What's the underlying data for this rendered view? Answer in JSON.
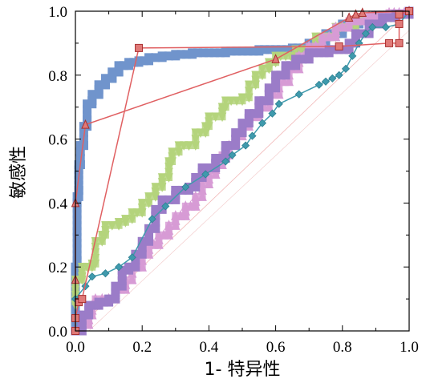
{
  "chart_data": {
    "type": "line",
    "title": "",
    "xlabel": "1- 特异性",
    "ylabel": "敏感性",
    "xlim": [
      0,
      1
    ],
    "ylim": [
      0,
      1
    ],
    "xticks": [
      "0.0",
      "0.2",
      "0.4",
      "0.6",
      "0.8",
      "1.0"
    ],
    "yticks": [
      "0.0",
      "0.2",
      "0.4",
      "0.6",
      "0.8",
      "1.0"
    ],
    "grid": false,
    "legend": "none",
    "diagonal_reference": [
      [
        0,
        0
      ],
      [
        1,
        1
      ]
    ],
    "series": [
      {
        "color": "#7094cc",
        "marker": "square",
        "style": "step",
        "points": [
          [
            0.0,
            0.0
          ],
          [
            0.0,
            0.2
          ],
          [
            0.005,
            0.22
          ],
          [
            0.005,
            0.42
          ],
          [
            0.01,
            0.44
          ],
          [
            0.01,
            0.52
          ],
          [
            0.015,
            0.52
          ],
          [
            0.015,
            0.58
          ],
          [
            0.025,
            0.58
          ],
          [
            0.025,
            0.64
          ],
          [
            0.035,
            0.66
          ],
          [
            0.035,
            0.71
          ],
          [
            0.05,
            0.72
          ],
          [
            0.05,
            0.74
          ],
          [
            0.07,
            0.74
          ],
          [
            0.07,
            0.77
          ],
          [
            0.09,
            0.77
          ],
          [
            0.09,
            0.79
          ],
          [
            0.11,
            0.79
          ],
          [
            0.11,
            0.81
          ],
          [
            0.13,
            0.81
          ],
          [
            0.13,
            0.83
          ],
          [
            0.16,
            0.84
          ],
          [
            0.19,
            0.845
          ],
          [
            0.22,
            0.855
          ],
          [
            0.26,
            0.86
          ],
          [
            0.3,
            0.865
          ],
          [
            0.35,
            0.87
          ],
          [
            0.45,
            0.875
          ],
          [
            0.55,
            0.88
          ],
          [
            0.65,
            0.885
          ],
          [
            0.7,
            0.9
          ],
          [
            0.75,
            0.93
          ],
          [
            0.8,
            0.96
          ],
          [
            0.85,
            0.975
          ],
          [
            0.9,
            0.985
          ],
          [
            0.95,
            0.99
          ],
          [
            1.0,
            1.0
          ]
        ]
      },
      {
        "color": "#b4d47c",
        "marker": "triangle-down",
        "style": "step",
        "points": [
          [
            0.0,
            0.08
          ],
          [
            0.0,
            0.16
          ],
          [
            0.02,
            0.17
          ],
          [
            0.02,
            0.2
          ],
          [
            0.05,
            0.21
          ],
          [
            0.06,
            0.28
          ],
          [
            0.08,
            0.3
          ],
          [
            0.09,
            0.33
          ],
          [
            0.13,
            0.34
          ],
          [
            0.15,
            0.35
          ],
          [
            0.17,
            0.37
          ],
          [
            0.2,
            0.4
          ],
          [
            0.22,
            0.42
          ],
          [
            0.24,
            0.45
          ],
          [
            0.26,
            0.48
          ],
          [
            0.28,
            0.53
          ],
          [
            0.29,
            0.56
          ],
          [
            0.31,
            0.58
          ],
          [
            0.34,
            0.58
          ],
          [
            0.36,
            0.62
          ],
          [
            0.39,
            0.64
          ],
          [
            0.4,
            0.67
          ],
          [
            0.44,
            0.7
          ],
          [
            0.45,
            0.72
          ],
          [
            0.5,
            0.73
          ],
          [
            0.52,
            0.77
          ],
          [
            0.54,
            0.8
          ],
          [
            0.56,
            0.82
          ],
          [
            0.58,
            0.84
          ],
          [
            0.6,
            0.86
          ],
          [
            0.66,
            0.88
          ],
          [
            0.72,
            0.92
          ],
          [
            0.78,
            0.95
          ],
          [
            0.84,
            0.97
          ],
          [
            0.9,
            0.98
          ],
          [
            0.96,
            0.99
          ],
          [
            1.0,
            1.0
          ]
        ]
      },
      {
        "color": "#d79bd5",
        "marker": "triangle",
        "style": "step",
        "points": [
          [
            0.0,
            0.0
          ],
          [
            0.02,
            0.02
          ],
          [
            0.04,
            0.05
          ],
          [
            0.05,
            0.08
          ],
          [
            0.06,
            0.1
          ],
          [
            0.1,
            0.1
          ],
          [
            0.12,
            0.13
          ],
          [
            0.15,
            0.16
          ],
          [
            0.17,
            0.2
          ],
          [
            0.2,
            0.24
          ],
          [
            0.22,
            0.27
          ],
          [
            0.25,
            0.3
          ],
          [
            0.28,
            0.33
          ],
          [
            0.3,
            0.36
          ],
          [
            0.33,
            0.39
          ],
          [
            0.36,
            0.42
          ],
          [
            0.38,
            0.46
          ],
          [
            0.4,
            0.49
          ],
          [
            0.42,
            0.52
          ],
          [
            0.44,
            0.55
          ],
          [
            0.46,
            0.58
          ],
          [
            0.48,
            0.61
          ],
          [
            0.5,
            0.64
          ],
          [
            0.52,
            0.67
          ],
          [
            0.55,
            0.7
          ],
          [
            0.58,
            0.74
          ],
          [
            0.61,
            0.78
          ],
          [
            0.64,
            0.82
          ],
          [
            0.67,
            0.86
          ],
          [
            0.7,
            0.89
          ],
          [
            0.74,
            0.92
          ],
          [
            0.78,
            0.95
          ],
          [
            0.82,
            0.97
          ],
          [
            0.88,
            0.985
          ],
          [
            0.94,
            0.995
          ],
          [
            1.0,
            1.0
          ]
        ]
      },
      {
        "color": "#9b7cc8",
        "marker": "square",
        "style": "step",
        "points": [
          [
            0.0,
            0.0
          ],
          [
            0.02,
            0.05
          ],
          [
            0.04,
            0.08
          ],
          [
            0.07,
            0.09
          ],
          [
            0.1,
            0.1
          ],
          [
            0.12,
            0.14
          ],
          [
            0.14,
            0.19
          ],
          [
            0.16,
            0.2
          ],
          [
            0.18,
            0.24
          ],
          [
            0.2,
            0.28
          ],
          [
            0.22,
            0.32
          ],
          [
            0.24,
            0.38
          ],
          [
            0.26,
            0.41
          ],
          [
            0.3,
            0.44
          ],
          [
            0.34,
            0.45
          ],
          [
            0.36,
            0.48
          ],
          [
            0.38,
            0.51
          ],
          [
            0.42,
            0.54
          ],
          [
            0.45,
            0.58
          ],
          [
            0.48,
            0.62
          ],
          [
            0.5,
            0.65
          ],
          [
            0.52,
            0.68
          ],
          [
            0.55,
            0.72
          ],
          [
            0.58,
            0.76
          ],
          [
            0.6,
            0.8
          ],
          [
            0.63,
            0.83
          ],
          [
            0.66,
            0.85
          ],
          [
            0.7,
            0.87
          ],
          [
            0.76,
            0.88
          ],
          [
            0.82,
            0.9
          ],
          [
            0.84,
            0.93
          ],
          [
            0.88,
            0.96
          ],
          [
            0.92,
            0.98
          ],
          [
            0.96,
            0.99
          ],
          [
            1.0,
            1.0
          ]
        ]
      },
      {
        "color": "#3f9aad",
        "marker": "diamond",
        "style": "line",
        "points": [
          [
            0.0,
            0.1
          ],
          [
            0.03,
            0.14
          ],
          [
            0.05,
            0.17
          ],
          [
            0.09,
            0.18
          ],
          [
            0.13,
            0.2
          ],
          [
            0.17,
            0.23
          ],
          [
            0.23,
            0.35
          ],
          [
            0.27,
            0.39
          ],
          [
            0.33,
            0.45
          ],
          [
            0.39,
            0.49
          ],
          [
            0.45,
            0.53
          ],
          [
            0.47,
            0.55
          ],
          [
            0.51,
            0.58
          ],
          [
            0.53,
            0.61
          ],
          [
            0.56,
            0.65
          ],
          [
            0.59,
            0.68
          ],
          [
            0.61,
            0.71
          ],
          [
            0.67,
            0.74
          ],
          [
            0.73,
            0.77
          ],
          [
            0.75,
            0.78
          ],
          [
            0.77,
            0.79
          ],
          [
            0.79,
            0.8
          ],
          [
            0.81,
            0.82
          ],
          [
            0.83,
            0.86
          ],
          [
            0.85,
            0.9
          ],
          [
            0.87,
            0.93
          ],
          [
            0.89,
            0.95
          ],
          [
            0.93,
            0.95
          ],
          [
            0.97,
            0.96
          ],
          [
            1.0,
            1.0
          ]
        ]
      },
      {
        "color": "#e06062",
        "marker": "triangle",
        "style": "line",
        "points": [
          [
            0.0,
            0.16
          ],
          [
            0.0,
            0.4
          ],
          [
            0.03,
            0.645
          ],
          [
            0.6,
            0.85
          ],
          [
            0.82,
            0.98
          ],
          [
            0.84,
            0.99
          ],
          [
            0.86,
            0.995
          ],
          [
            1.0,
            1.0
          ]
        ]
      },
      {
        "color": "#e06062",
        "marker": "square",
        "style": "line",
        "points": [
          [
            0.0,
            0.0
          ],
          [
            0.0,
            0.04
          ],
          [
            0.01,
            0.09
          ],
          [
            0.02,
            0.1
          ],
          [
            0.19,
            0.885
          ],
          [
            0.79,
            0.89
          ],
          [
            0.94,
            0.9
          ],
          [
            0.97,
            0.9
          ],
          [
            0.97,
            0.96
          ],
          [
            0.97,
            0.99
          ],
          [
            1.0,
            1.0
          ]
        ]
      }
    ]
  }
}
